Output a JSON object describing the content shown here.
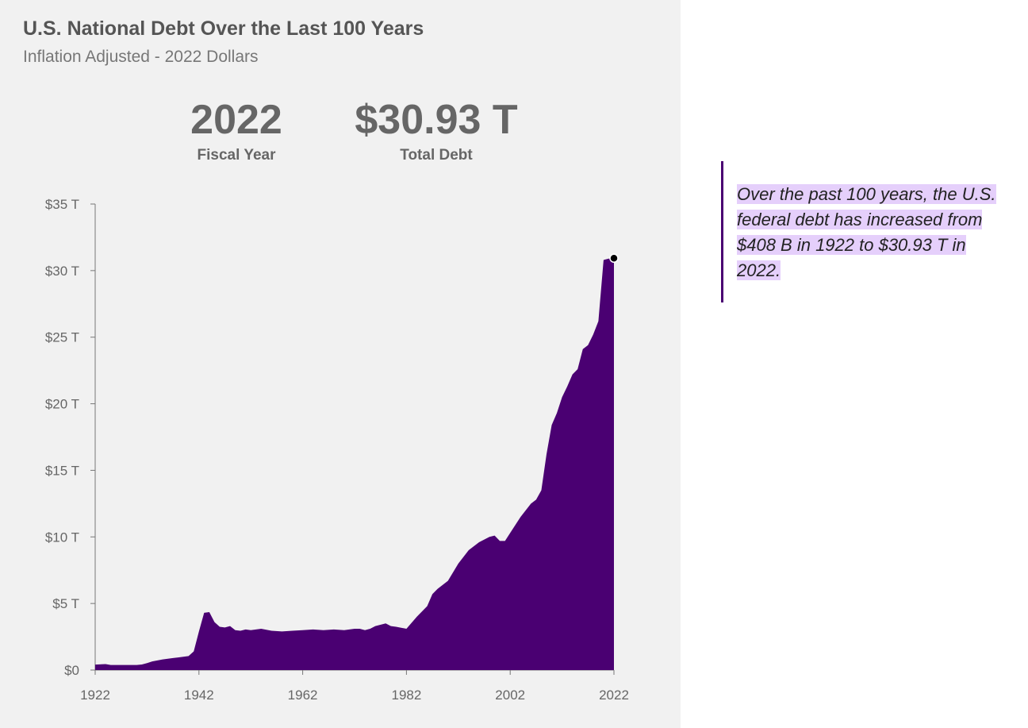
{
  "header": {
    "title": "U.S. National Debt Over the Last 100 Years",
    "subtitle": "Inflation Adjusted - 2022 Dollars"
  },
  "stats": {
    "year_value": "2022",
    "year_label": "Fiscal Year",
    "debt_value": "$30.93 T",
    "debt_label": "Total Debt"
  },
  "callout": {
    "text": "Over the past 100 years, the U.S. federal debt has increased from $408 B in 1922 to $30.93 T in 2022."
  },
  "colors": {
    "area": "#4a0072",
    "highlight": "#e5cffb",
    "panel": "#f1f1f1",
    "axis": "#777777"
  },
  "chart_data": {
    "type": "area",
    "title": "U.S. National Debt Over the Last 100 Years",
    "subtitle": "Inflation Adjusted - 2022 Dollars",
    "xlabel": "",
    "ylabel": "",
    "xlim": [
      1922,
      2022
    ],
    "ylim": [
      0,
      35
    ],
    "x_ticks": [
      1922,
      1942,
      1962,
      1982,
      2002,
      2022
    ],
    "x_tick_labels": [
      "1922",
      "1942",
      "1962",
      "1982",
      "2002",
      "2022"
    ],
    "y_ticks": [
      0,
      5,
      10,
      15,
      20,
      25,
      30,
      35
    ],
    "y_tick_labels": [
      "$0",
      "$5 T",
      "$10 T",
      "$15 T",
      "$20 T",
      "$25 T",
      "$30 T",
      "$35 T"
    ],
    "grid": false,
    "legend": "none",
    "highlight_point": {
      "x": 2022,
      "y": 30.93
    },
    "series": [
      {
        "x": [
          1922,
          1924,
          1925,
          1930,
          1931,
          1932,
          1933,
          1935,
          1937,
          1938,
          1940,
          1941,
          1942,
          1943,
          1944,
          1945,
          1946,
          1947,
          1948,
          1949,
          1950,
          1951,
          1952,
          1954,
          1956,
          1958,
          1960,
          1962,
          1964,
          1966,
          1968,
          1970,
          1972,
          1973,
          1974,
          1975,
          1976,
          1978,
          1979,
          1980,
          1982,
          1984,
          1986,
          1987,
          1988,
          1990,
          1992,
          1994,
          1996,
          1998,
          1999,
          2000,
          2001,
          2002,
          2004,
          2006,
          2007,
          2008,
          2009,
          2010,
          2011,
          2012,
          2013,
          2014,
          2015,
          2016,
          2017,
          2018,
          2019,
          2020,
          2021,
          2022
        ],
        "y": [
          0.41,
          0.45,
          0.38,
          0.38,
          0.42,
          0.52,
          0.65,
          0.8,
          0.9,
          0.95,
          1.05,
          1.4,
          2.9,
          4.3,
          4.35,
          3.6,
          3.25,
          3.2,
          3.3,
          3.0,
          2.95,
          3.05,
          3.0,
          3.1,
          2.95,
          2.9,
          2.95,
          3.0,
          3.05,
          3.0,
          3.05,
          3.0,
          3.1,
          3.1,
          3.0,
          3.1,
          3.3,
          3.5,
          3.3,
          3.25,
          3.1,
          4.0,
          4.8,
          5.7,
          6.1,
          6.7,
          8.0,
          9.0,
          9.6,
          10.0,
          10.1,
          9.7,
          9.7,
          10.3,
          11.5,
          12.5,
          12.8,
          13.5,
          16.2,
          18.4,
          19.3,
          20.5,
          21.3,
          22.2,
          22.6,
          24.1,
          24.4,
          25.2,
          26.2,
          30.8,
          30.9,
          30.93
        ]
      }
    ]
  }
}
